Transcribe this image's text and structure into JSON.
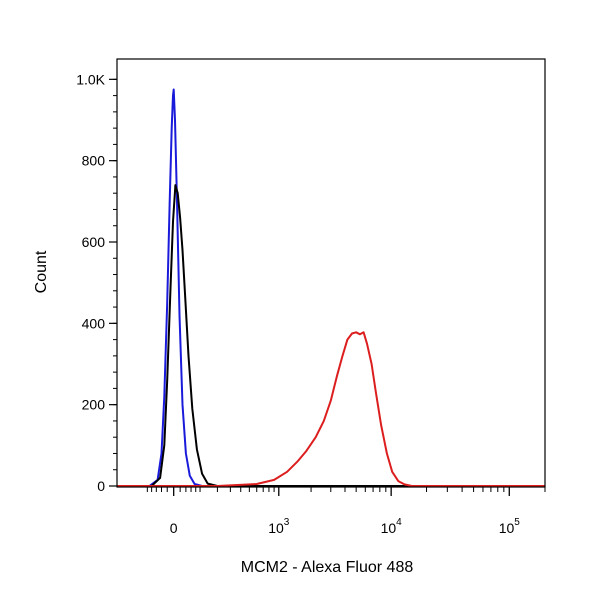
{
  "chart_data": {
    "type": "line",
    "title": "",
    "xlabel": "MCM2 - Alexa Fluor 488",
    "ylabel": "Count",
    "x_scale": "biexponential",
    "xlim": [
      -300,
      200000
    ],
    "ylim": [
      0,
      1050
    ],
    "grid": false,
    "legend": "none",
    "y_ticks": [
      {
        "value": 0,
        "label": "0"
      },
      {
        "value": 200,
        "label": "200"
      },
      {
        "value": 400,
        "label": "400"
      },
      {
        "value": 600,
        "label": "600"
      },
      {
        "value": 800,
        "label": "800"
      },
      {
        "value": 1000,
        "label": "1.0K"
      }
    ],
    "x_ticks": [
      {
        "value": 0,
        "base": "0",
        "exp": ""
      },
      {
        "value": 1000,
        "base": "10",
        "exp": "3"
      },
      {
        "value": 10000,
        "base": "10",
        "exp": "4"
      },
      {
        "value": 100000,
        "base": "10",
        "exp": "5"
      }
    ],
    "series": [
      {
        "color": "#1a1adb",
        "x": [
          -90,
          -55,
          -40,
          -30,
          -20,
          -12,
          -6,
          -2,
          0,
          4,
          10,
          18,
          28,
          40,
          55,
          75,
          110,
          180,
          400,
          1000,
          3000,
          10000,
          30000,
          180000
        ],
        "y": [
          0,
          15,
          80,
          220,
          450,
          700,
          880,
          960,
          975,
          900,
          700,
          420,
          200,
          80,
          25,
          5,
          0,
          0,
          0,
          0,
          0,
          0,
          0,
          0
        ]
      },
      {
        "color": "#000000",
        "x": [
          -80,
          -45,
          -30,
          -20,
          -10,
          -2,
          5,
          12,
          20,
          28,
          38,
          50,
          65,
          85,
          110,
          140,
          200,
          400,
          1000,
          3000,
          10000,
          30000,
          180000
        ],
        "y": [
          0,
          20,
          100,
          260,
          480,
          650,
          740,
          720,
          660,
          580,
          460,
          320,
          190,
          90,
          30,
          6,
          0,
          0,
          0,
          0,
          0,
          0,
          0
        ]
      },
      {
        "color": "#dc1e1e",
        "x": [
          -300,
          200,
          600,
          900,
          1200,
          1500,
          1800,
          2200,
          2600,
          3000,
          3400,
          3800,
          4200,
          4600,
          5000,
          5400,
          5800,
          6200,
          6800,
          7400,
          8200,
          9200,
          10200,
          11500,
          13000,
          15000,
          20000,
          50000,
          200000
        ],
        "y": [
          0,
          0,
          5,
          15,
          35,
          60,
          85,
          120,
          160,
          210,
          270,
          320,
          360,
          375,
          378,
          373,
          378,
          350,
          300,
          230,
          150,
          80,
          35,
          12,
          4,
          0,
          0,
          0,
          0
        ]
      }
    ]
  }
}
